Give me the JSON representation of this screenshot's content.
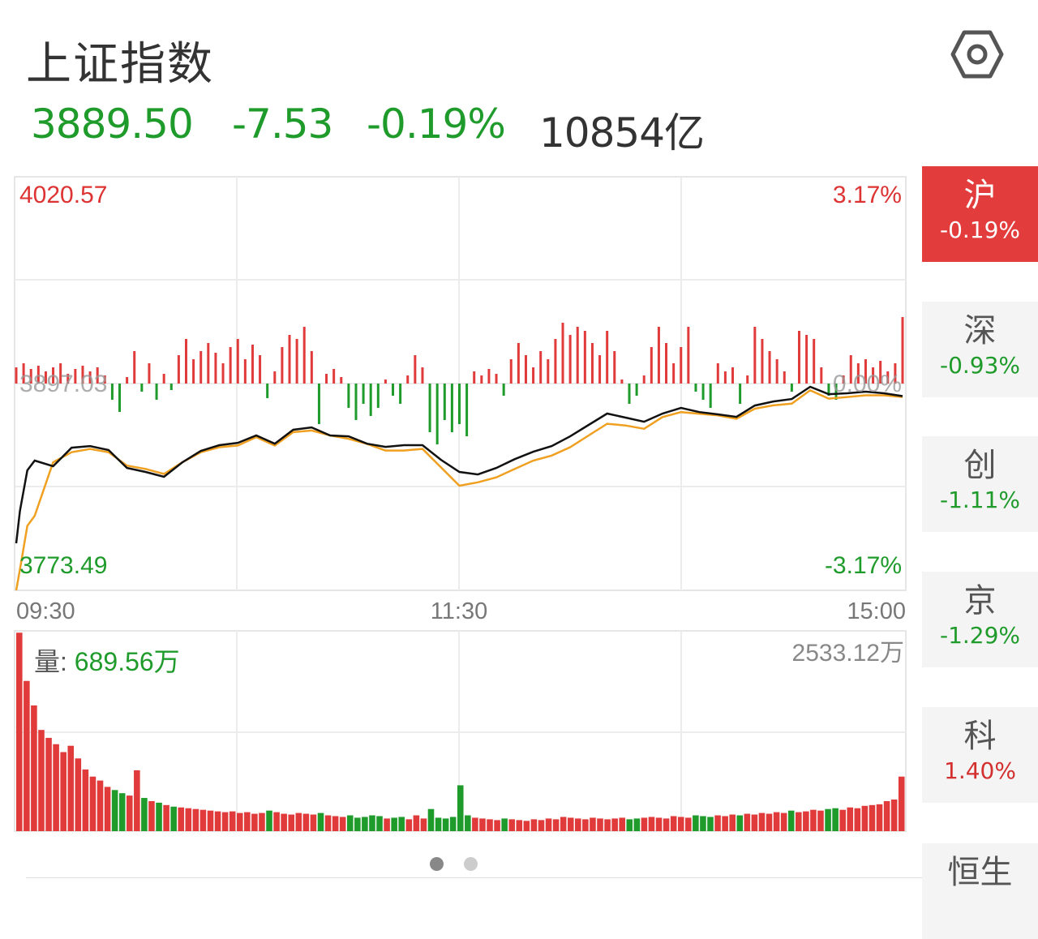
{
  "header": {
    "title": "上证指数",
    "settings_icon": "hexagon-settings-icon"
  },
  "quote": {
    "price": "3889.50",
    "change": "-7.53",
    "change_pct": "-0.19%",
    "turnover": "10854亿"
  },
  "colors": {
    "up": "#e03a3a",
    "down": "#1f9b2b",
    "price_line": "#111111",
    "avg_line": "#f0a020"
  },
  "chart_data": [
    {
      "type": "line",
      "title": "",
      "y_max_label": "4020.57",
      "y_min_label": "3773.49",
      "y_mid_label": "3897.03",
      "pct_max_label": "3.17%",
      "pct_min_label": "-3.17%",
      "pct_mid_label": "0.00%",
      "ylim": [
        3773.49,
        4020.57
      ],
      "x_ticks": [
        "09:30",
        "11:30",
        "15:00"
      ],
      "x": [
        "09:30",
        "09:31",
        "09:33",
        "09:35",
        "09:40",
        "09:45",
        "09:50",
        "09:55",
        "10:00",
        "10:05",
        "10:10",
        "10:15",
        "10:20",
        "10:25",
        "10:30",
        "10:35",
        "10:40",
        "10:45",
        "10:50",
        "10:55",
        "11:00",
        "11:05",
        "11:10",
        "11:15",
        "11:20",
        "11:25",
        "11:30",
        "13:05",
        "13:10",
        "13:15",
        "13:20",
        "13:25",
        "13:30",
        "13:35",
        "13:40",
        "13:45",
        "13:50",
        "13:55",
        "14:00",
        "14:05",
        "14:10",
        "14:15",
        "14:20",
        "14:25",
        "14:30",
        "14:35",
        "14:40",
        "14:45",
        "14:50",
        "14:55",
        "15:00"
      ],
      "series": [
        {
          "values": [
            3801.6,
            3821.0,
            3845.2,
            3851.0,
            3847.6,
            3858.7,
            3859.7,
            3857.3,
            3846.6,
            3844.2,
            3841.3,
            3850.0,
            3856.8,
            3860.2,
            3861.6,
            3866.0,
            3861.1,
            3869.4,
            3870.8,
            3866.0,
            3865.5,
            3861.1,
            3859.2,
            3860.2,
            3860.2,
            3851.5,
            3844.2,
            3842.7,
            3846.6,
            3851.9,
            3856.3,
            3859.7,
            3865.5,
            3872.3,
            3879.1,
            3876.7,
            3874.2,
            3879.1,
            3882.5,
            3880.0,
            3878.6,
            3877.1,
            3883.9,
            3886.3,
            3887.8,
            3895.1,
            3890.7,
            3891.2,
            3892.2,
            3891.2,
            3889.5
          ]
        },
        {
          "values": [
            3773.5,
            3786,
            3812,
            3818,
            3850,
            3856,
            3858,
            3856,
            3848,
            3846,
            3843,
            3850,
            3856,
            3859,
            3860,
            3865,
            3860,
            3868,
            3869,
            3866,
            3864,
            3861,
            3857,
            3857,
            3858,
            3847,
            3836,
            3838,
            3841,
            3846,
            3851,
            3854,
            3859,
            3866,
            3873,
            3872,
            3870,
            3877,
            3880,
            3879,
            3878,
            3876,
            3882,
            3884,
            3885,
            3893,
            3888,
            3889,
            3890,
            3890,
            3889
          ]
        }
      ],
      "flow_bars": [
        20,
        25,
        18,
        22,
        15,
        20,
        25,
        12,
        18,
        22,
        15,
        20,
        10,
        -20,
        -35,
        8,
        40,
        -10,
        25,
        -20,
        12,
        -8,
        35,
        55,
        30,
        40,
        50,
        38,
        25,
        45,
        55,
        30,
        48,
        35,
        -18,
        15,
        45,
        60,
        55,
        70,
        40,
        -50,
        12,
        18,
        8,
        -30,
        -45,
        -25,
        -40,
        -30,
        5,
        -15,
        -25,
        10,
        35,
        20,
        -60,
        -75,
        -45,
        -60,
        -50,
        -65,
        15,
        10,
        18,
        12,
        -15,
        30,
        50,
        35,
        20,
        40,
        30,
        55,
        75,
        60,
        70,
        65,
        50,
        35,
        65,
        40,
        5,
        -25,
        -15,
        10,
        45,
        70,
        50,
        25,
        45,
        70,
        -10,
        -20,
        -30,
        25,
        15,
        20,
        -25,
        10,
        70,
        55,
        40,
        30,
        15,
        -10,
        65,
        60,
        55,
        20,
        -15,
        -20,
        10,
        35,
        25,
        30,
        20,
        28,
        15,
        25,
        82
      ]
    },
    {
      "type": "bar",
      "title": "",
      "volume_label": "量:",
      "volume_value": "689.56万",
      "max_label": "2533.12万",
      "ylim": [
        0,
        2533.12
      ],
      "values": [
        2510,
        1900,
        1590,
        1280,
        1180,
        1100,
        1000,
        1080,
        920,
        780,
        690,
        640,
        560,
        520,
        480,
        450,
        770,
        420,
        380,
        360,
        330,
        310,
        300,
        290,
        280,
        270,
        260,
        250,
        240,
        250,
        230,
        240,
        220,
        230,
        260,
        240,
        220,
        210,
        230,
        220,
        210,
        230,
        200,
        190,
        180,
        200,
        170,
        180,
        200,
        190,
        160,
        170,
        180,
        150,
        200,
        160,
        280,
        170,
        160,
        180,
        580,
        200,
        170,
        160,
        150,
        140,
        160,
        150,
        140,
        130,
        150,
        140,
        160,
        150,
        180,
        170,
        160,
        150,
        170,
        160,
        150,
        160,
        170,
        150,
        160,
        170,
        180,
        170,
        160,
        190,
        180,
        170,
        200,
        190,
        180,
        200,
        190,
        210,
        200,
        220,
        210,
        230,
        220,
        240,
        230,
        260,
        240,
        250,
        270,
        260,
        280,
        290,
        270,
        300,
        290,
        320,
        330,
        340,
        380,
        400,
        690
      ]
    }
  ],
  "sidebar": {
    "items": [
      {
        "name": "沪",
        "pct": "-0.19%",
        "dir": "down",
        "active": true
      },
      {
        "name": "深",
        "pct": "-0.93%",
        "dir": "down"
      },
      {
        "name": "创",
        "pct": "-1.11%",
        "dir": "down"
      },
      {
        "name": "京",
        "pct": "-1.29%",
        "dir": "down"
      },
      {
        "name": "科",
        "pct": "1.40%",
        "dir": "up"
      },
      {
        "name": "恒生",
        "pct": "",
        "dir": ""
      }
    ]
  },
  "pager": {
    "pages": 2,
    "current": 1
  }
}
